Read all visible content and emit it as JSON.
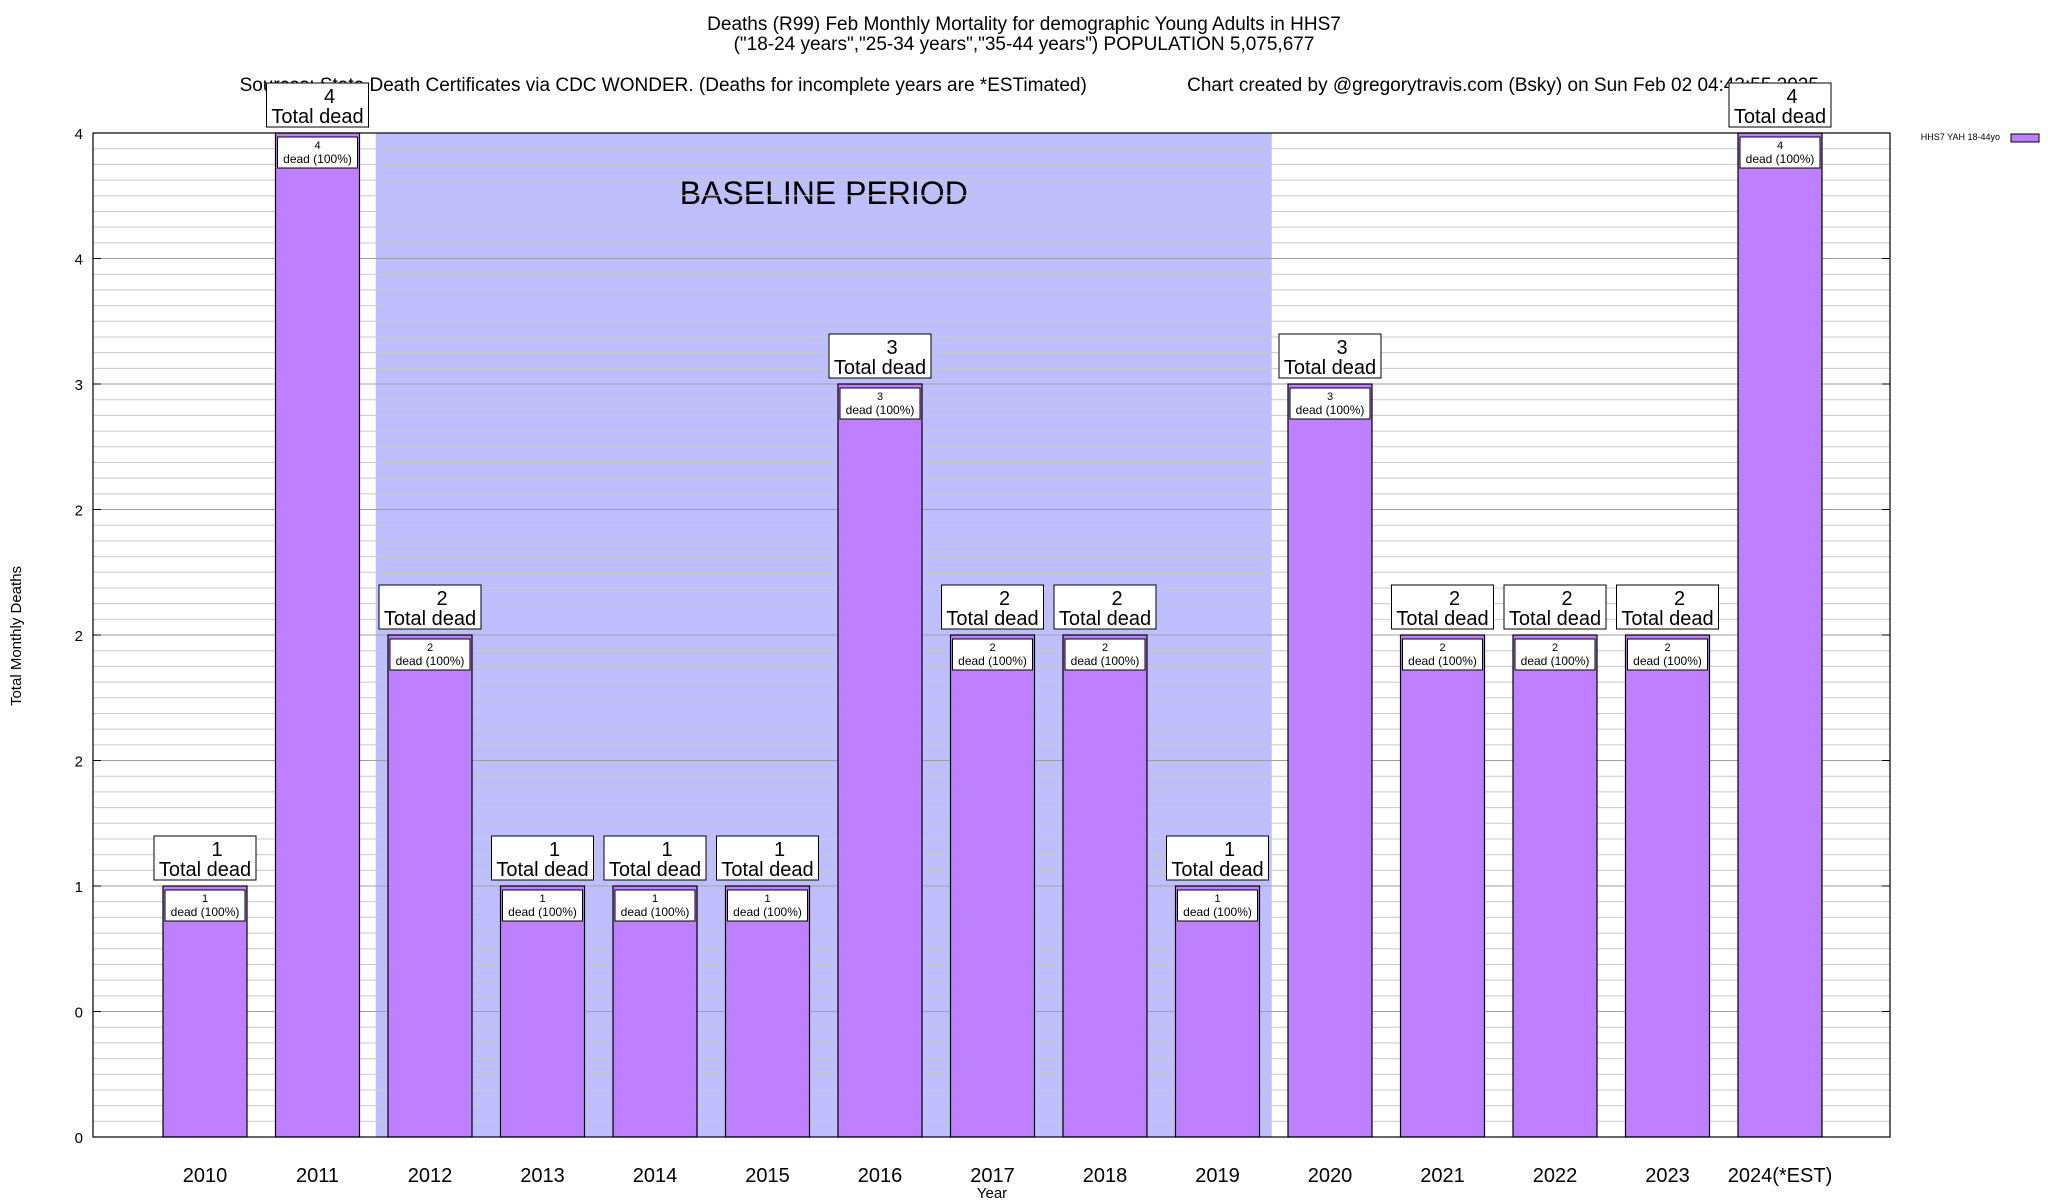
{
  "chart_data": {
    "type": "bar",
    "title_lines": [
      "Deaths (R99) Feb Monthly Mortality for demographic Young Adults in HHS7",
      "(\"18-24 years\",\"25-34 years\",\"35-44 years\") POPULATION 5,075,677"
    ],
    "sources_text": "Sources: State Death Certificates via CDC WONDER. (Deaths for incomplete years are *ESTimated)",
    "credit_text": "Chart created by @gregorytravis.com (Bsky) on Sun Feb 02 04:43:55 2025",
    "xlabel": "Year",
    "ylabel": "Total Monthly Deaths",
    "categories": [
      "2010",
      "2011",
      "2012",
      "2013",
      "2014",
      "2015",
      "2016",
      "2017",
      "2018",
      "2019",
      "2020",
      "2021",
      "2022",
      "2023",
      "2024(*EST)"
    ],
    "values": [
      1,
      4,
      2,
      1,
      1,
      1,
      3,
      2,
      2,
      1,
      3,
      2,
      2,
      2,
      4
    ],
    "series": [
      {
        "name": "HHS7 YAH 18-44yo",
        "color": "#bf80ff",
        "values": [
          1,
          4,
          2,
          1,
          1,
          1,
          3,
          2,
          2,
          1,
          3,
          2,
          2,
          2,
          4
        ]
      }
    ],
    "ylim": [
      0,
      4
    ],
    "ytick_labels": [
      "0",
      "0",
      "1",
      "2",
      "2",
      "2",
      "3",
      "4",
      "4"
    ],
    "total_label_suffix": "Total dead",
    "segment_label_suffix": "dead (100%)",
    "baseline_label": "BASELINE PERIOD",
    "baseline_range": [
      "2012",
      "2019"
    ],
    "baseline_color": "#bfbfff",
    "legend_position": "top-right"
  }
}
